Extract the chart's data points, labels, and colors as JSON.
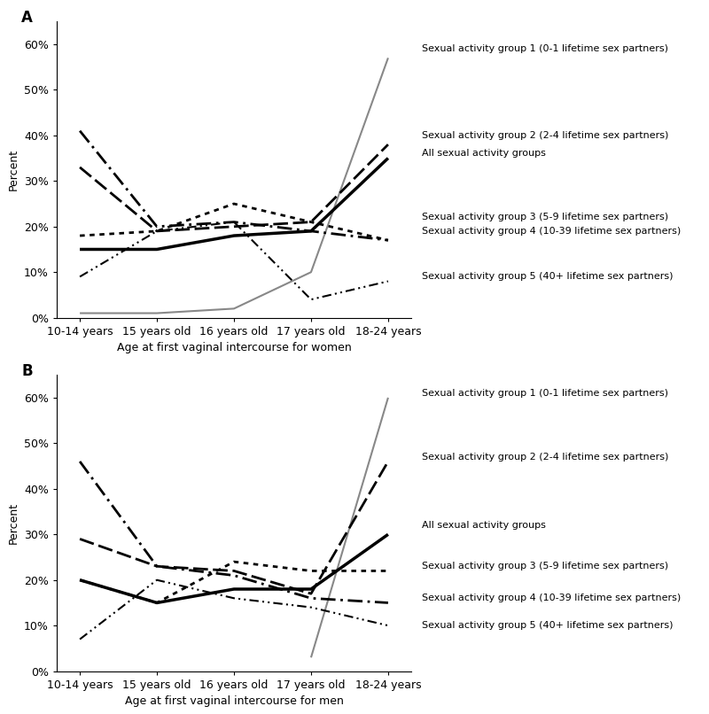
{
  "x_labels": [
    "10-14 years",
    "15 years old",
    "16 years old",
    "17 years old",
    "18-24 years"
  ],
  "panel_A": {
    "title": "A",
    "xlabel": "Age at first vaginal intercourse for women",
    "series": {
      "group1": {
        "label": "Sexual activity group 1 (0-1 lifetime sex partners)",
        "values": [
          1,
          1,
          2,
          10,
          57
        ],
        "linestyle": "solid",
        "color": "#888888",
        "linewidth": 1.5
      },
      "group2": {
        "label": "Sexual activity group 2 (2-4 lifetime sex partners)",
        "values": [
          33,
          19,
          20,
          21,
          38
        ],
        "linestyle": "dashed",
        "color": "#000000",
        "linewidth": 2.0
      },
      "all": {
        "label": "All sexual activity groups",
        "values": [
          15,
          15,
          18,
          19,
          35
        ],
        "linestyle": "solid",
        "color": "#000000",
        "linewidth": 2.5
      },
      "group3": {
        "label": "Sexual activity group 3 (5-9 lifetime sex partners)",
        "values": [
          18,
          19,
          25,
          21,
          17
        ],
        "linestyle": "dotted",
        "color": "#000000",
        "linewidth": 2.0
      },
      "group4": {
        "label": "Sexual activity group 4 (10-39 lifetime sex partners)",
        "values": [
          41,
          20,
          21,
          19,
          17
        ],
        "linestyle": "dashdot",
        "color": "#000000",
        "linewidth": 2.0
      },
      "group5": {
        "label": "Sexual activity group 5 (40+ lifetime sex partners)",
        "values": [
          9,
          19,
          21,
          4,
          8
        ],
        "linestyle": "dashdotdot",
        "color": "#000000",
        "linewidth": 1.5
      }
    }
  },
  "panel_B": {
    "title": "B",
    "xlabel": "Age at first vaginal intercourse for men",
    "series": {
      "group1": {
        "label": "Sexual activity group 1 (0-1 lifetime sex partners)",
        "values": [
          null,
          null,
          null,
          3,
          60
        ],
        "linestyle": "solid",
        "color": "#888888",
        "linewidth": 1.5
      },
      "group2": {
        "label": "Sexual activity group 2 (2-4 lifetime sex partners)",
        "values": [
          29,
          23,
          22,
          17,
          46
        ],
        "linestyle": "dashed",
        "color": "#000000",
        "linewidth": 2.0
      },
      "all": {
        "label": "All sexual activity groups",
        "values": [
          20,
          15,
          18,
          18,
          30
        ],
        "linestyle": "solid",
        "color": "#000000",
        "linewidth": 2.5
      },
      "group3": {
        "label": "Sexual activity group 3 (5-9 lifetime sex partners)",
        "values": [
          20,
          15,
          24,
          22,
          22
        ],
        "linestyle": "dotted",
        "color": "#000000",
        "linewidth": 2.0
      },
      "group4": {
        "label": "Sexual activity group 4 (10-39 lifetime sex partners)",
        "values": [
          46,
          23,
          21,
          16,
          15
        ],
        "linestyle": "dashdot",
        "color": "#000000",
        "linewidth": 2.0
      },
      "group5": {
        "label": "Sexual activity group 5 (40+ lifetime sex partners)",
        "values": [
          7,
          20,
          16,
          14,
          10
        ],
        "linestyle": "dashdotdot",
        "color": "#000000",
        "linewidth": 1.5
      }
    }
  },
  "ylim": [
    0,
    65
  ],
  "yticks": [
    0,
    10,
    20,
    30,
    40,
    50,
    60
  ],
  "ytick_labels": [
    "0%",
    "10%",
    "20%",
    "30%",
    "40%",
    "50%",
    "60%"
  ],
  "ylabel": "Percent",
  "axis_fontsize": 9,
  "title_fontsize": 12,
  "label_fontsize": 8,
  "lbl_y_A": {
    "group1": 59,
    "group2": 40,
    "all": 36,
    "group3": 22,
    "group4": 19,
    "group5": 9
  },
  "lbl_y_B": {
    "group1": 61,
    "group2": 47,
    "all": 32,
    "group3": 23,
    "group4": 16,
    "group5": 10
  },
  "legend_items": [
    [
      "group1",
      "Sexual activity group 1 (0-1 lifetime sex partners)"
    ],
    [
      "group2",
      "Sexual activity group 2 (2-4 lifetime sex partners)"
    ],
    [
      "all",
      "All sexual activity groups"
    ],
    [
      "group3",
      "Sexual activity group 3 (5-9 lifetime sex partners)"
    ],
    [
      "group4",
      "Sexual activity group 4 (10-39 lifetime sex partners)"
    ],
    [
      "group5",
      "Sexual activity group 5 (40+ lifetime sex partners)"
    ]
  ],
  "series_order": [
    "group1",
    "group4",
    "group3",
    "all",
    "group2",
    "group5"
  ]
}
